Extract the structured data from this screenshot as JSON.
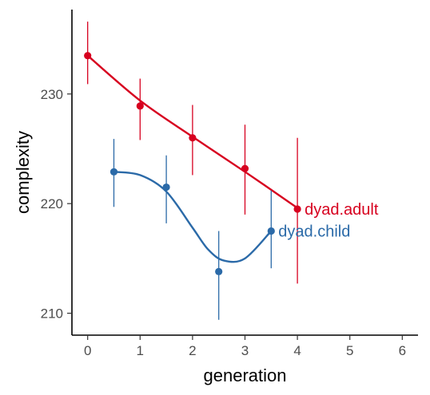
{
  "chart_data": {
    "type": "line",
    "title": "",
    "xlabel": "generation",
    "ylabel": "complexity",
    "xlim": [
      -0.3,
      6.3
    ],
    "ylim": [
      208,
      237.7
    ],
    "x_ticks": [
      0,
      1,
      2,
      3,
      4,
      5,
      6
    ],
    "y_ticks": [
      210,
      220,
      230
    ],
    "grid": false,
    "legend": "none (series labeled directly at line ends)",
    "series": [
      {
        "name": "dyad.adult",
        "color": "#d7001f",
        "points": [
          {
            "x": 0,
            "y": 233.5,
            "lo": 230.9,
            "hi": 236.6
          },
          {
            "x": 1,
            "y": 228.9,
            "lo": 225.8,
            "hi": 231.4
          },
          {
            "x": 2,
            "y": 226.0,
            "lo": 222.6,
            "hi": 229.0
          },
          {
            "x": 3,
            "y": 223.2,
            "lo": 219.0,
            "hi": 227.2
          },
          {
            "x": 4,
            "y": 219.5,
            "lo": 212.7,
            "hi": 226.0
          }
        ],
        "trend": [
          {
            "x": 0,
            "y": 233.5
          },
          {
            "x": 1,
            "y": 229.4
          },
          {
            "x": 2,
            "y": 226.1
          },
          {
            "x": 3,
            "y": 222.9
          },
          {
            "x": 4,
            "y": 219.6
          }
        ]
      },
      {
        "name": "dyad.child",
        "color": "#2b6aa8",
        "points": [
          {
            "x": 0.5,
            "y": 222.9,
            "lo": 219.7,
            "hi": 225.9
          },
          {
            "x": 1.5,
            "y": 221.5,
            "lo": 218.2,
            "hi": 224.4
          },
          {
            "x": 2.5,
            "y": 213.8,
            "lo": 209.4,
            "hi": 217.5
          },
          {
            "x": 3.5,
            "y": 217.5,
            "lo": 214.1,
            "hi": 221.2
          }
        ],
        "trend": [
          {
            "x": 0.5,
            "y": 222.9
          },
          {
            "x": 1.0,
            "y": 222.6
          },
          {
            "x": 1.5,
            "y": 221.1
          },
          {
            "x": 2.0,
            "y": 217.8
          },
          {
            "x": 2.3,
            "y": 215.8
          },
          {
            "x": 2.6,
            "y": 214.8
          },
          {
            "x": 3.0,
            "y": 215.0
          },
          {
            "x": 3.5,
            "y": 217.5
          }
        ]
      }
    ]
  }
}
